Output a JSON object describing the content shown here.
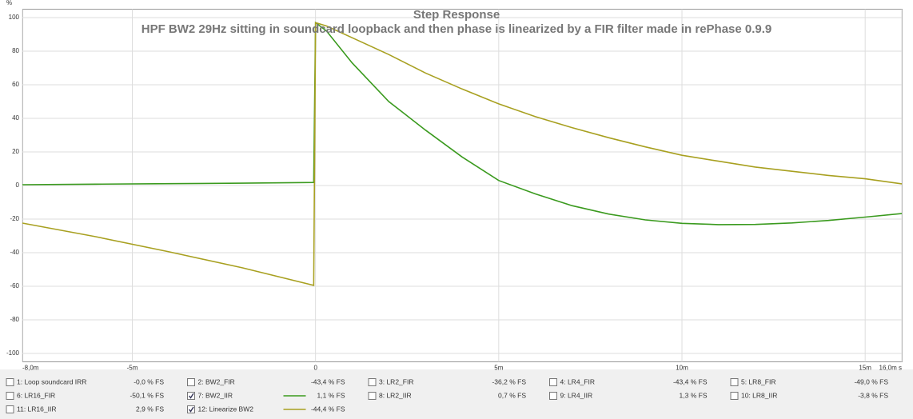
{
  "chart_data": {
    "type": "line",
    "title": "Step Response",
    "subtitle": "HPF BW2 29Hz sitting in soundcard loopback and then phase is linearized by a FIR filter made in rePhase 0.9.9",
    "y_label": "%",
    "xlim": [
      -8,
      16
    ],
    "ylim": [
      -105,
      105
    ],
    "xticks": [
      {
        "value": -8,
        "label": "-8,0m"
      },
      {
        "value": -5,
        "label": "-5m"
      },
      0,
      {
        "value": 5,
        "label": "5m"
      },
      {
        "value": 10,
        "label": "10m"
      },
      {
        "value": 15,
        "label": "15m"
      },
      {
        "value": 16,
        "label": "16,0m s"
      }
    ],
    "yticks": [
      -100,
      -80,
      -60,
      -40,
      -20,
      0,
      20,
      40,
      60,
      80,
      100
    ],
    "grid": true,
    "x": [
      -8,
      -6,
      -4,
      -2,
      -0.05,
      0,
      0.3,
      1,
      2,
      3,
      4,
      5,
      6,
      7,
      8,
      9,
      10,
      11,
      12,
      13,
      14,
      15,
      16
    ],
    "series": [
      {
        "name": "1: Loop soundcard IRR",
        "color": "#1f3f9f",
        "readout": "-0,0 % FS",
        "checked": false
      },
      {
        "name": "2: BW2_FIR",
        "color": "#3f9f3f",
        "readout": "-43,4 % FS",
        "checked": false
      },
      {
        "name": "3: LR2_FIR",
        "color": "#c0203a",
        "readout": "-36,2 % FS",
        "checked": false
      },
      {
        "name": "4: LR4_FIR",
        "color": "#c8203a",
        "readout": "-43,4 % FS",
        "checked": false
      },
      {
        "name": "5: LR8_FIR",
        "color": "#3f9f3f",
        "readout": "-49,0 % FS",
        "checked": false
      },
      {
        "name": "6: LR16_FIR",
        "color": "#3f9f3f",
        "readout": "-50,1 % FS",
        "checked": false
      },
      {
        "name": "7: BW2_IIR",
        "color": "#3a9a1e",
        "readout": "1,1 % FS",
        "checked": true,
        "values": [
          0.5,
          0.8,
          1.1,
          1.4,
          1.8,
          97,
          92,
          73,
          50,
          33,
          17,
          3,
          -5,
          -12,
          -17,
          -20.5,
          -22.5,
          -23.3,
          -23.2,
          -22.3,
          -20.8,
          -18.8,
          -16.7
        ]
      },
      {
        "name": "8: LR2_IIR",
        "color": "#3f9f3f",
        "readout": "0,7 % FS",
        "checked": false
      },
      {
        "name": "9: LR4_IIR",
        "color": "#3f9f3f",
        "readout": "1,3 % FS",
        "checked": false
      },
      {
        "name": "10: LR8_IIR",
        "color": "#3f9f3f",
        "readout": "-3,8 % FS",
        "checked": false
      },
      {
        "name": "11: LR16_IIR",
        "color": "#3f9f3f",
        "readout": "2,9 % FS",
        "checked": false
      },
      {
        "name": "12: Linearize BW2",
        "color": "#a8a020",
        "readout": "-44,4 % FS",
        "checked": true,
        "values": [
          -22.4,
          -30.5,
          -39.5,
          -49,
          -59.5,
          97,
          95,
          88,
          78,
          67,
          57.5,
          48.6,
          41,
          34.5,
          28.5,
          23,
          18,
          14.5,
          11,
          8.5,
          6,
          4,
          1
        ]
      }
    ]
  }
}
